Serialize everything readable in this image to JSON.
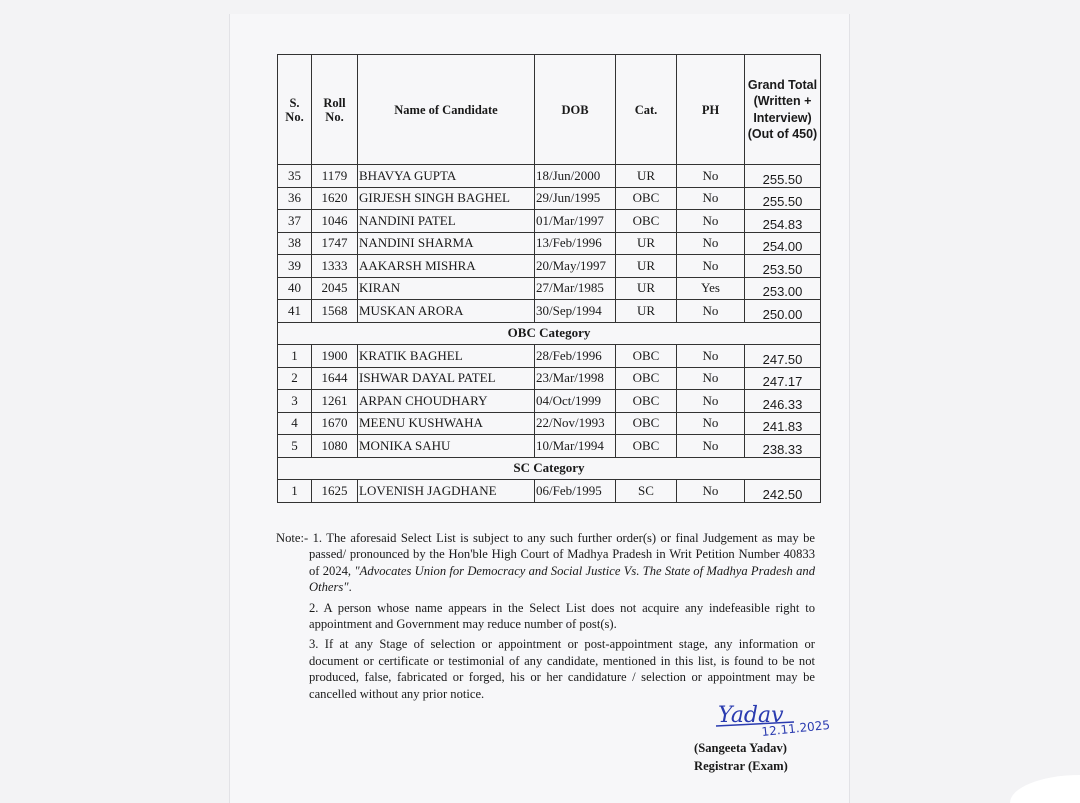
{
  "table": {
    "headers": [
      "S. No.",
      "Roll No.",
      "Name of Candidate",
      "DOB",
      "Cat.",
      "PH",
      "Grand Total (Written + Interview) (Out of 450)"
    ],
    "sections": [
      {
        "title": "",
        "rows": [
          [
            "35",
            "1179",
            "BHAVYA GUPTA",
            "18/Jun/2000",
            "UR",
            "No",
            "255.50"
          ],
          [
            "36",
            "1620",
            "GIRJESH SINGH BAGHEL",
            "29/Jun/1995",
            "OBC",
            "No",
            "255.50"
          ],
          [
            "37",
            "1046",
            "NANDINI PATEL",
            "01/Mar/1997",
            "OBC",
            "No",
            "254.83"
          ],
          [
            "38",
            "1747",
            "NANDINI SHARMA",
            "13/Feb/1996",
            "UR",
            "No",
            "254.00"
          ],
          [
            "39",
            "1333",
            "AAKARSH MISHRA",
            "20/May/1997",
            "UR",
            "No",
            "253.50"
          ],
          [
            "40",
            "2045",
            "KIRAN",
            "27/Mar/1985",
            "UR",
            "Yes",
            "253.00"
          ],
          [
            "41",
            "1568",
            "MUSKAN ARORA",
            "30/Sep/1994",
            "UR",
            "No",
            "250.00"
          ]
        ]
      },
      {
        "title": "OBC Category",
        "rows": [
          [
            "1",
            "1900",
            "KRATIK BAGHEL",
            "28/Feb/1996",
            "OBC",
            "No",
            "247.50"
          ],
          [
            "2",
            "1644",
            "ISHWAR DAYAL PATEL",
            "23/Mar/1998",
            "OBC",
            "No",
            "247.17"
          ],
          [
            "3",
            "1261",
            "ARPAN CHOUDHARY",
            "04/Oct/1999",
            "OBC",
            "No",
            "246.33"
          ],
          [
            "4",
            "1670",
            "MEENU KUSHWAHA",
            "22/Nov/1993",
            "OBC",
            "No",
            "241.83"
          ],
          [
            "5",
            "1080",
            "MONIKA SAHU",
            "10/Mar/1994",
            "OBC",
            "No",
            "238.33"
          ]
        ]
      },
      {
        "title": "SC Category",
        "rows": [
          [
            "1",
            "1625",
            "LOVENISH JAGDHANE",
            "06/Feb/1995",
            "SC",
            "No",
            "242.50"
          ]
        ]
      }
    ]
  },
  "notes": {
    "prefix": "Note:- ",
    "items": [
      {
        "text": "1. The aforesaid Select List is subject to any such further order(s) or final Judgement as may be passed/ pronounced by the Hon'ble High Court of Madhya Pradesh in Writ Petition Number 40833 of 2024, ",
        "italic": "\"Advocates Union for Democracy and Social Justice Vs. The State of Madhya Pradesh and Others\"",
        "end": "."
      },
      {
        "text": "2. A person whose name appears in the Select List does not acquire any indefeasible right to appointment and Government may reduce number of post(s)."
      },
      {
        "text": "3. If at any Stage of selection or appointment or post-appointment stage, any information or document or certificate or testimonial of any candidate, mentioned in this list, is found to be not produced, false, fabricated or forged, his or her candidature / selection or appointment may be cancelled without any prior notice."
      }
    ]
  },
  "signature": {
    "handwritten": "Yadav",
    "date": "12.11.2025",
    "name": "(Sangeeta Yadav)",
    "designation": "Registrar (Exam)",
    "ink_color": "#2a3bb0"
  }
}
